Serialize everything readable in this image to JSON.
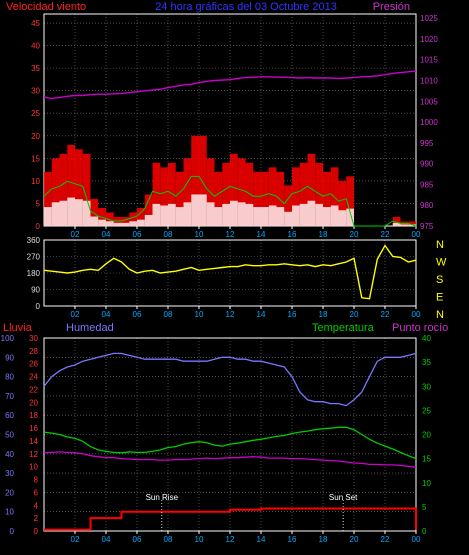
{
  "header": {
    "left_title": "Velocidad viento",
    "center_title": "24 hora gráficas del 03 Octubre 2013",
    "right_title": "Presión"
  },
  "colors": {
    "wind_speed": "#ff0000",
    "wind_avg": "#00cc00",
    "wind_gust_low": "#ffffff",
    "pressure": "#cc00cc",
    "direction": "#ffff00",
    "rain": "#ff0000",
    "humidity": "#7777ff",
    "temperature": "#00cc00",
    "dewpoint": "#cc00cc",
    "grid": "#7a7a7a",
    "frame": "#ffffff",
    "left_axis_top": "#ff3333",
    "right_axis_top": "#cc33cc",
    "left_axis_bottom": "#ff3333",
    "left_axis_bottom2": "#7777ff",
    "right_axis_bottom": "#00cc00",
    "title_center": "#3333ff"
  },
  "x_ticks": [
    "02",
    "04",
    "06",
    "08",
    "10",
    "12",
    "14",
    "16",
    "18",
    "20",
    "22",
    "00"
  ],
  "chart_data": [
    {
      "type": "line",
      "title": "24 hora gráficas del 03 Octubre 2013",
      "x": [
        0,
        0.5,
        1,
        1.5,
        2,
        2.5,
        3,
        3.5,
        4,
        4.5,
        5,
        5.5,
        6,
        6.5,
        7,
        7.5,
        8,
        8.5,
        9,
        9.5,
        10,
        10.5,
        11,
        11.5,
        12,
        12.5,
        13,
        13.5,
        14,
        14.5,
        15,
        15.5,
        16,
        16.5,
        17,
        17.5,
        18,
        18.5,
        19,
        19.5,
        20,
        20.5,
        21,
        21.5,
        22,
        22.5,
        23,
        23.5,
        24
      ],
      "y_axes": {
        "left": {
          "label": "Velocidad viento",
          "ticks": [
            0,
            5,
            10,
            15,
            20,
            25,
            30,
            35,
            40,
            45
          ],
          "range": [
            0,
            47
          ]
        },
        "right": {
          "label": "Presión",
          "ticks": [
            975,
            980,
            985,
            990,
            995,
            1000,
            1005,
            1010,
            1015,
            1020,
            1025
          ],
          "range": [
            975,
            1026
          ]
        }
      },
      "series": [
        {
          "name": "Velocidad viento",
          "axis": "left",
          "values": [
            12,
            15,
            16,
            18,
            17,
            16,
            6,
            4,
            3,
            2,
            2,
            3,
            4,
            7,
            14,
            13,
            14,
            12,
            15,
            20,
            20,
            15,
            12,
            14,
            16,
            15,
            14,
            12,
            12,
            13,
            12,
            9,
            13,
            14,
            16,
            14,
            12,
            13,
            10,
            11,
            0,
            0,
            0,
            0,
            0,
            2,
            1,
            1,
            0
          ]
        },
        {
          "name": "Presión",
          "axis": "right",
          "values": [
            1006.0,
            1005.7,
            1005.9,
            1006.2,
            1006.4,
            1006.4,
            1006.6,
            1006.7,
            1006.7,
            1006.8,
            1006.9,
            1007.1,
            1007.3,
            1007.5,
            1007.7,
            1007.9,
            1008.3,
            1008.6,
            1008.9,
            1009.1,
            1009.5,
            1009.8,
            1010.0,
            1010.1,
            1010.2,
            1010.5,
            1010.7,
            1010.8,
            1010.9,
            1010.9,
            1010.8,
            1010.8,
            1010.7,
            1010.6,
            1010.7,
            1010.6,
            1010.6,
            1010.6,
            1010.5,
            1010.6,
            1010.7,
            1010.9,
            1011.0,
            1011.1,
            1011.4,
            1011.7,
            1011.9,
            1012.1,
            1012.3
          ]
        }
      ]
    },
    {
      "type": "line",
      "title": "",
      "x": [
        0,
        0.5,
        1,
        1.5,
        2,
        2.5,
        3,
        3.5,
        4,
        4.5,
        5,
        5.5,
        6,
        6.5,
        7,
        7.5,
        8,
        8.5,
        9,
        9.5,
        10,
        10.5,
        11,
        11.5,
        12,
        12.5,
        13,
        13.5,
        14,
        14.5,
        15,
        15.5,
        16,
        16.5,
        17,
        17.5,
        18,
        18.5,
        19,
        19.5,
        20,
        20.5,
        21,
        21.5,
        22,
        22.5,
        23,
        23.5,
        24
      ],
      "y_axes": {
        "left": {
          "label": "",
          "ticks": [
            0,
            90,
            180,
            270,
            360
          ],
          "range": [
            0,
            360
          ]
        },
        "right": {
          "label": "",
          "ticks": [
            "N",
            "W",
            "S",
            "E",
            "N"
          ]
        }
      },
      "series": [
        {
          "name": "",
          "axis": "left",
          "values": [
            195,
            190,
            185,
            180,
            185,
            195,
            200,
            195,
            230,
            260,
            240,
            200,
            180,
            190,
            195,
            180,
            185,
            190,
            200,
            210,
            195,
            200,
            205,
            210,
            215,
            215,
            225,
            220,
            220,
            225,
            225,
            230,
            225,
            220,
            225,
            215,
            225,
            220,
            230,
            240,
            260,
            45,
            40,
            255,
            330,
            270,
            265,
            240,
            250
          ]
        }
      ]
    },
    {
      "type": "line",
      "title": "",
      "x": [
        0,
        0.5,
        1,
        1.5,
        2,
        2.5,
        3,
        3.5,
        4,
        4.5,
        5,
        5.5,
        6,
        6.5,
        7,
        7.5,
        8,
        8.5,
        9,
        9.5,
        10,
        10.5,
        11,
        11.5,
        12,
        12.5,
        13,
        13.5,
        14,
        14.5,
        15,
        15.5,
        16,
        16.5,
        17,
        17.5,
        18,
        18.5,
        19,
        19.5,
        20,
        20.5,
        21,
        21.5,
        22,
        22.5,
        23,
        23.5,
        24
      ],
      "y_axes": {
        "left_outer": {
          "label": "Lluvia",
          "ticks": [
            0,
            2,
            4,
            6,
            8,
            10,
            12,
            14,
            16,
            18,
            20,
            22,
            24,
            26,
            28,
            30
          ],
          "range": [
            0,
            30
          ]
        },
        "left_inner": {
          "label": "Humedad",
          "ticks": [
            0,
            10,
            20,
            30,
            40,
            50,
            60,
            70,
            80,
            90,
            100
          ],
          "range": [
            0,
            100
          ]
        },
        "right": {
          "label": "Temperatura",
          "ticks": [
            0,
            5,
            10,
            15,
            20,
            25,
            30,
            35,
            40
          ],
          "range": [
            0,
            40
          ]
        }
      },
      "annotations": [
        {
          "label": "Sun Rise",
          "x": 7.6
        },
        {
          "label": "Sun Set",
          "x": 19.3
        }
      ],
      "series": [
        {
          "name": "Lluvia",
          "axis": "left_outer",
          "values": [
            0.2,
            0.2,
            0.2,
            0.2,
            0.2,
            0.2,
            2,
            2,
            2,
            2,
            3,
            3,
            3,
            3,
            3,
            3,
            3,
            3,
            3,
            3,
            3,
            3,
            3,
            3,
            3.3,
            3.3,
            3.3,
            3.3,
            3.5,
            3.5,
            3.5,
            3.5,
            3.5,
            3.5,
            3.5,
            3.5,
            3.5,
            3.5,
            3.5,
            3.5,
            3.5,
            3.5,
            3.5,
            3.5,
            3.5,
            3.5,
            3.5,
            3.5,
            0.2
          ]
        },
        {
          "name": "Humedad",
          "axis": "left_inner",
          "values": [
            75,
            80,
            83,
            85,
            86,
            88,
            89,
            90,
            91,
            92,
            92,
            91,
            90,
            89,
            89,
            89,
            89,
            89,
            88,
            88,
            88,
            88,
            89,
            90,
            90,
            89,
            89,
            88,
            88,
            87,
            86,
            85,
            80,
            72,
            68,
            67,
            67,
            66,
            66,
            65,
            68,
            72,
            80,
            88,
            90,
            90,
            90,
            91,
            92
          ]
        },
        {
          "name": "Temperatura",
          "axis": "right",
          "values": [
            20.5,
            20.3,
            20,
            19.5,
            19.2,
            18.6,
            17.5,
            16.8,
            16.5,
            16.3,
            16.2,
            16.4,
            16.3,
            16.3,
            16.5,
            16.8,
            17.3,
            17.5,
            18,
            18.3,
            18.5,
            18.3,
            17.8,
            17.6,
            18,
            18.2,
            18.5,
            18.8,
            19,
            19.3,
            19.6,
            19.8,
            20.2,
            20.5,
            20.7,
            21,
            21.2,
            21.3,
            21.5,
            21.5,
            21,
            20,
            19,
            18.2,
            17.6,
            17,
            16.3,
            15.6,
            15
          ]
        },
        {
          "name": "Punto rocío",
          "axis": "right",
          "values": [
            16.2,
            16.3,
            16.4,
            16.3,
            16.2,
            16,
            15.6,
            15.4,
            15.2,
            15.2,
            15,
            14.9,
            14.8,
            14.8,
            14.8,
            14.7,
            14.7,
            14.8,
            14.8,
            14.9,
            15,
            15.1,
            15,
            15.1,
            15.2,
            15.2,
            15.3,
            15.4,
            15.3,
            15.1,
            15.1,
            15.1,
            15,
            15,
            14.9,
            14.8,
            14.7,
            14.6,
            14.5,
            14.3,
            14.1,
            14,
            13.8,
            13.8,
            13.7,
            13.7,
            13.6,
            13.4,
            13.2
          ]
        }
      ]
    }
  ],
  "panel3_labels": {
    "rain": "Lluvia",
    "humidity": "Humedad",
    "temperature": "Temperatura",
    "dewpoint": "Punto rocío",
    "sunrise": "Sun Rise",
    "sunset": "Sun Set"
  }
}
